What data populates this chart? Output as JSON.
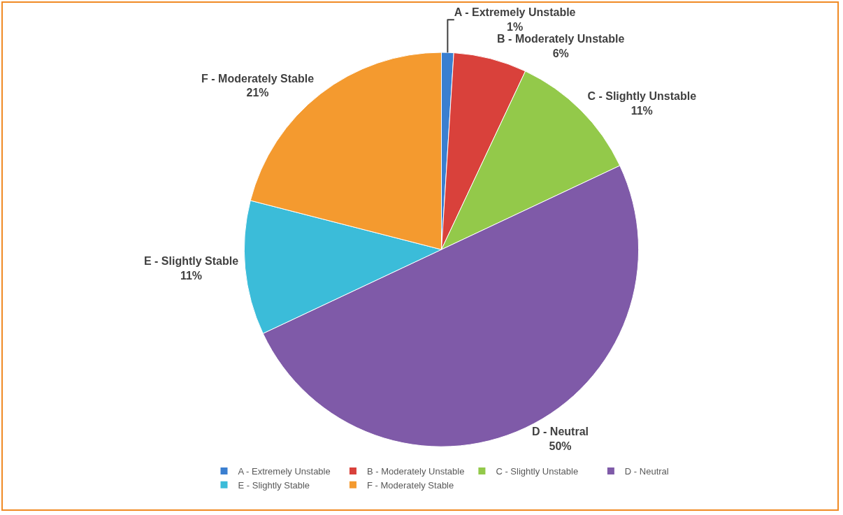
{
  "chart_data": {
    "type": "pie",
    "categories": [
      "A - Extremely Unstable",
      "B - Moderately Unstable",
      "C - Slightly Unstable",
      "D - Neutral",
      "E - Slightly Stable",
      "F - Moderately Stable"
    ],
    "values": [
      1,
      6,
      11,
      50,
      11,
      21
    ],
    "value_labels": [
      "1%",
      "6%",
      "11%",
      "50%",
      "11%",
      "21%"
    ],
    "colors": [
      "#3a7fd0",
      "#d9413b",
      "#93c94a",
      "#7f5aa8",
      "#3bbcd9",
      "#f49a2f"
    ],
    "legend": "bottom"
  }
}
